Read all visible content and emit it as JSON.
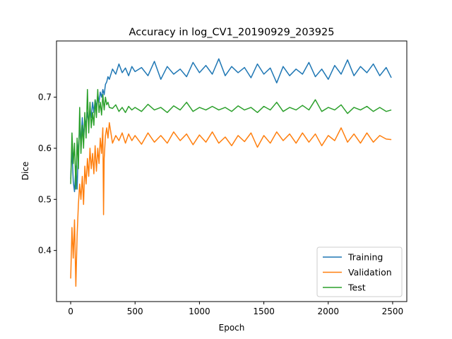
{
  "chart_data": {
    "type": "line",
    "title": "Accuracy in log_CV1_20190929_203925",
    "xlabel": "Epoch",
    "ylabel": "Dice",
    "xlim": [
      -110,
      2610
    ],
    "ylim": [
      0.3,
      0.81
    ],
    "xticks": [
      0,
      500,
      1000,
      1500,
      2000,
      2500
    ],
    "yticks": [
      0.4,
      0.5,
      0.6,
      0.7
    ],
    "ytick_labels": [
      "0.4",
      "0.5",
      "0.6",
      "0.7"
    ],
    "grid": false,
    "legend_position": "lower-right",
    "series": [
      {
        "name": "Training",
        "color": "#1f77b4",
        "points": [
          [
            0,
            0.54
          ],
          [
            10,
            0.6
          ],
          [
            20,
            0.535
          ],
          [
            30,
            0.515
          ],
          [
            40,
            0.565
          ],
          [
            50,
            0.52
          ],
          [
            60,
            0.6
          ],
          [
            70,
            0.64
          ],
          [
            80,
            0.61
          ],
          [
            90,
            0.66
          ],
          [
            100,
            0.62
          ],
          [
            110,
            0.66
          ],
          [
            120,
            0.645
          ],
          [
            130,
            0.67
          ],
          [
            140,
            0.65
          ],
          [
            150,
            0.675
          ],
          [
            160,
            0.66
          ],
          [
            170,
            0.69
          ],
          [
            180,
            0.67
          ],
          [
            190,
            0.695
          ],
          [
            200,
            0.68
          ],
          [
            210,
            0.705
          ],
          [
            220,
            0.69
          ],
          [
            230,
            0.71
          ],
          [
            240,
            0.7
          ],
          [
            250,
            0.715
          ],
          [
            260,
            0.705
          ],
          [
            270,
            0.725
          ],
          [
            280,
            0.73
          ],
          [
            290,
            0.74
          ],
          [
            300,
            0.735
          ],
          [
            325,
            0.755
          ],
          [
            350,
            0.745
          ],
          [
            375,
            0.765
          ],
          [
            400,
            0.748
          ],
          [
            425,
            0.757
          ],
          [
            450,
            0.742
          ],
          [
            475,
            0.76
          ],
          [
            500,
            0.75
          ],
          [
            550,
            0.758
          ],
          [
            600,
            0.742
          ],
          [
            650,
            0.77
          ],
          [
            700,
            0.735
          ],
          [
            750,
            0.76
          ],
          [
            800,
            0.745
          ],
          [
            850,
            0.755
          ],
          [
            900,
            0.74
          ],
          [
            950,
            0.768
          ],
          [
            1000,
            0.748
          ],
          [
            1050,
            0.762
          ],
          [
            1100,
            0.745
          ],
          [
            1150,
            0.775
          ],
          [
            1200,
            0.742
          ],
          [
            1250,
            0.76
          ],
          [
            1300,
            0.748
          ],
          [
            1350,
            0.758
          ],
          [
            1400,
            0.738
          ],
          [
            1450,
            0.765
          ],
          [
            1500,
            0.745
          ],
          [
            1550,
            0.757
          ],
          [
            1600,
            0.728
          ],
          [
            1650,
            0.76
          ],
          [
            1700,
            0.742
          ],
          [
            1750,
            0.755
          ],
          [
            1800,
            0.745
          ],
          [
            1850,
            0.768
          ],
          [
            1900,
            0.74
          ],
          [
            1950,
            0.755
          ],
          [
            2000,
            0.735
          ],
          [
            2050,
            0.762
          ],
          [
            2100,
            0.745
          ],
          [
            2150,
            0.773
          ],
          [
            2200,
            0.742
          ],
          [
            2250,
            0.76
          ],
          [
            2300,
            0.748
          ],
          [
            2350,
            0.765
          ],
          [
            2400,
            0.742
          ],
          [
            2450,
            0.758
          ],
          [
            2490,
            0.738
          ]
        ]
      },
      {
        "name": "Validation",
        "color": "#ff7f0e",
        "points": [
          [
            0,
            0.345
          ],
          [
            10,
            0.445
          ],
          [
            20,
            0.385
          ],
          [
            30,
            0.46
          ],
          [
            40,
            0.33
          ],
          [
            50,
            0.43
          ],
          [
            60,
            0.49
          ],
          [
            70,
            0.53
          ],
          [
            80,
            0.5
          ],
          [
            90,
            0.545
          ],
          [
            100,
            0.49
          ],
          [
            110,
            0.565
          ],
          [
            120,
            0.53
          ],
          [
            130,
            0.58
          ],
          [
            140,
            0.545
          ],
          [
            150,
            0.6
          ],
          [
            160,
            0.56
          ],
          [
            170,
            0.59
          ],
          [
            180,
            0.55
          ],
          [
            190,
            0.605
          ],
          [
            200,
            0.555
          ],
          [
            210,
            0.6
          ],
          [
            220,
            0.57
          ],
          [
            230,
            0.62
          ],
          [
            240,
            0.59
          ],
          [
            250,
            0.64
          ],
          [
            255,
            0.47
          ],
          [
            260,
            0.58
          ],
          [
            270,
            0.625
          ],
          [
            280,
            0.64
          ],
          [
            290,
            0.62
          ],
          [
            300,
            0.65
          ],
          [
            325,
            0.61
          ],
          [
            350,
            0.625
          ],
          [
            375,
            0.615
          ],
          [
            400,
            0.63
          ],
          [
            425,
            0.61
          ],
          [
            450,
            0.628
          ],
          [
            475,
            0.615
          ],
          [
            500,
            0.625
          ],
          [
            550,
            0.608
          ],
          [
            600,
            0.63
          ],
          [
            650,
            0.612
          ],
          [
            700,
            0.625
          ],
          [
            750,
            0.61
          ],
          [
            800,
            0.632
          ],
          [
            850,
            0.615
          ],
          [
            900,
            0.628
          ],
          [
            950,
            0.607
          ],
          [
            1000,
            0.626
          ],
          [
            1050,
            0.612
          ],
          [
            1100,
            0.632
          ],
          [
            1150,
            0.61
          ],
          [
            1200,
            0.622
          ],
          [
            1250,
            0.605
          ],
          [
            1300,
            0.625
          ],
          [
            1350,
            0.613
          ],
          [
            1400,
            0.63
          ],
          [
            1450,
            0.602
          ],
          [
            1500,
            0.625
          ],
          [
            1550,
            0.61
          ],
          [
            1600,
            0.632
          ],
          [
            1650,
            0.615
          ],
          [
            1700,
            0.628
          ],
          [
            1750,
            0.61
          ],
          [
            1800,
            0.63
          ],
          [
            1850,
            0.612
          ],
          [
            1900,
            0.628
          ],
          [
            1950,
            0.605
          ],
          [
            2000,
            0.625
          ],
          [
            2050,
            0.615
          ],
          [
            2100,
            0.64
          ],
          [
            2150,
            0.612
          ],
          [
            2200,
            0.628
          ],
          [
            2250,
            0.61
          ],
          [
            2300,
            0.63
          ],
          [
            2350,
            0.612
          ],
          [
            2400,
            0.625
          ],
          [
            2450,
            0.618
          ],
          [
            2490,
            0.617
          ]
        ]
      },
      {
        "name": "Test",
        "color": "#2ca02c",
        "points": [
          [
            0,
            0.53
          ],
          [
            10,
            0.63
          ],
          [
            20,
            0.57
          ],
          [
            30,
            0.61
          ],
          [
            40,
            0.52
          ],
          [
            50,
            0.62
          ],
          [
            60,
            0.56
          ],
          [
            70,
            0.68
          ],
          [
            80,
            0.59
          ],
          [
            90,
            0.645
          ],
          [
            100,
            0.6
          ],
          [
            110,
            0.67
          ],
          [
            120,
            0.62
          ],
          [
            130,
            0.715
          ],
          [
            140,
            0.63
          ],
          [
            150,
            0.69
          ],
          [
            160,
            0.64
          ],
          [
            170,
            0.67
          ],
          [
            180,
            0.645
          ],
          [
            190,
            0.695
          ],
          [
            200,
            0.66
          ],
          [
            210,
            0.715
          ],
          [
            220,
            0.67
          ],
          [
            230,
            0.69
          ],
          [
            240,
            0.665
          ],
          [
            250,
            0.705
          ],
          [
            260,
            0.675
          ],
          [
            270,
            0.7
          ],
          [
            280,
            0.685
          ],
          [
            290,
            0.69
          ],
          [
            300,
            0.68
          ],
          [
            325,
            0.678
          ],
          [
            350,
            0.685
          ],
          [
            375,
            0.672
          ],
          [
            400,
            0.68
          ],
          [
            425,
            0.67
          ],
          [
            450,
            0.682
          ],
          [
            475,
            0.675
          ],
          [
            500,
            0.68
          ],
          [
            550,
            0.672
          ],
          [
            600,
            0.686
          ],
          [
            650,
            0.675
          ],
          [
            700,
            0.68
          ],
          [
            750,
            0.67
          ],
          [
            800,
            0.683
          ],
          [
            850,
            0.675
          ],
          [
            900,
            0.69
          ],
          [
            950,
            0.672
          ],
          [
            1000,
            0.68
          ],
          [
            1050,
            0.675
          ],
          [
            1100,
            0.682
          ],
          [
            1150,
            0.675
          ],
          [
            1200,
            0.68
          ],
          [
            1250,
            0.672
          ],
          [
            1300,
            0.683
          ],
          [
            1350,
            0.675
          ],
          [
            1400,
            0.68
          ],
          [
            1450,
            0.67
          ],
          [
            1500,
            0.682
          ],
          [
            1550,
            0.675
          ],
          [
            1600,
            0.69
          ],
          [
            1650,
            0.672
          ],
          [
            1700,
            0.68
          ],
          [
            1750,
            0.675
          ],
          [
            1800,
            0.684
          ],
          [
            1850,
            0.675
          ],
          [
            1900,
            0.695
          ],
          [
            1950,
            0.672
          ],
          [
            2000,
            0.68
          ],
          [
            2050,
            0.675
          ],
          [
            2100,
            0.685
          ],
          [
            2150,
            0.668
          ],
          [
            2200,
            0.68
          ],
          [
            2250,
            0.675
          ],
          [
            2300,
            0.682
          ],
          [
            2350,
            0.672
          ],
          [
            2400,
            0.68
          ],
          [
            2450,
            0.672
          ],
          [
            2490,
            0.675
          ]
        ]
      }
    ]
  }
}
